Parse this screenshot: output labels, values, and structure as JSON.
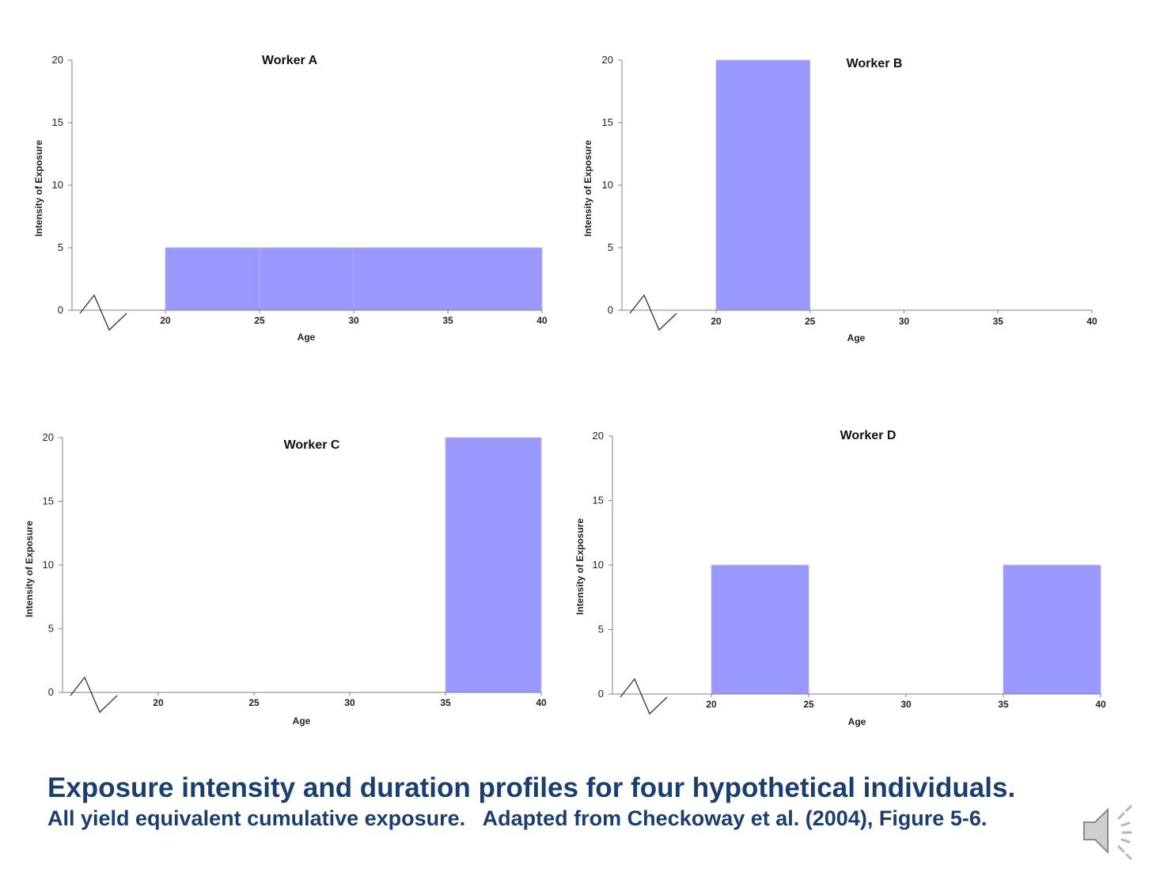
{
  "caption": {
    "title": "Exposure intensity and duration profiles for four hypothetical individuals.",
    "subtitle": "All yield equivalent cumulative exposure.   Adapted from Checkoway et al. (2004), Figure 5-6."
  },
  "colors": {
    "bar": "#9999ff",
    "axis": "#808080",
    "caption": "#1a3f6e"
  },
  "audio_icon": "speaker-icon",
  "chart_data": [
    {
      "type": "bar",
      "title": "Worker A",
      "xlabel": "Age",
      "ylabel": "Intensity of Exposure",
      "xticks": [
        20,
        25,
        30,
        35,
        40
      ],
      "yticks": [
        0,
        5,
        10,
        15,
        20
      ],
      "xlim": [
        20,
        40
      ],
      "ylim": [
        0,
        20
      ],
      "axis_break": true,
      "bars": [
        {
          "x0": 20,
          "x1": 25,
          "value": 5
        },
        {
          "x0": 25,
          "x1": 30,
          "value": 5
        },
        {
          "x0": 30,
          "x1": 40,
          "value": 5
        }
      ]
    },
    {
      "type": "bar",
      "title": "Worker B",
      "xlabel": "Age",
      "ylabel": "Intensity of Exposure",
      "xticks": [
        20,
        25,
        30,
        35,
        40
      ],
      "yticks": [
        0,
        5,
        10,
        15,
        20
      ],
      "xlim": [
        20,
        40
      ],
      "ylim": [
        0,
        20
      ],
      "axis_break": true,
      "bars": [
        {
          "x0": 20,
          "x1": 25,
          "value": 20
        }
      ]
    },
    {
      "type": "bar",
      "title": "Worker C",
      "xlabel": "Age",
      "ylabel": "Intensity of Exposure",
      "xticks": [
        20,
        25,
        30,
        35,
        40
      ],
      "yticks": [
        0,
        5,
        10,
        15,
        20
      ],
      "xlim": [
        20,
        40
      ],
      "ylim": [
        0,
        20
      ],
      "axis_break": true,
      "bars": [
        {
          "x0": 35,
          "x1": 40,
          "value": 20
        }
      ]
    },
    {
      "type": "bar",
      "title": "Worker D",
      "xlabel": "Age",
      "ylabel": "Intensity of Exposure",
      "xticks": [
        20,
        25,
        30,
        35,
        40
      ],
      "yticks": [
        0,
        5,
        10,
        15,
        20
      ],
      "xlim": [
        20,
        40
      ],
      "ylim": [
        0,
        20
      ],
      "axis_break": true,
      "bars": [
        {
          "x0": 20,
          "x1": 25,
          "value": 10
        },
        {
          "x0": 35,
          "x1": 40,
          "value": 10
        }
      ]
    }
  ]
}
